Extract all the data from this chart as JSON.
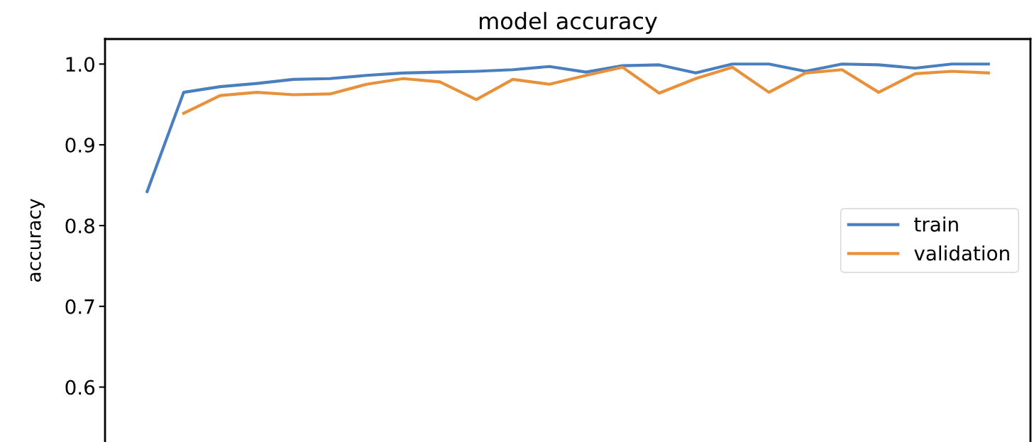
{
  "chart_data": {
    "type": "line",
    "title": "model accuracy",
    "ylabel": "accuracy",
    "categories": [
      null,
      null,
      null,
      null,
      null,
      null,
      null,
      null,
      null,
      null,
      null,
      null,
      null,
      null,
      null,
      null,
      null,
      null,
      null,
      null,
      null,
      null,
      null,
      null
    ],
    "series": [
      {
        "name": "train",
        "color": "#4a7fbf",
        "values": [
          0.842,
          0.965,
          0.972,
          0.976,
          0.981,
          0.982,
          0.986,
          0.989,
          0.99,
          0.991,
          0.993,
          0.997,
          0.99,
          0.998,
          0.999,
          0.989,
          1.0,
          1.0,
          0.991,
          1.0,
          0.999,
          0.995,
          1.0,
          1.0
        ]
      },
      {
        "name": "validation",
        "color": "#e8913a",
        "values": [
          null,
          0.939,
          0.961,
          0.965,
          0.962,
          0.963,
          0.975,
          0.982,
          0.978,
          0.956,
          0.981,
          0.975,
          0.986,
          0.996,
          0.964,
          0.982,
          0.996,
          0.965,
          0.989,
          0.993,
          0.965,
          0.988,
          0.991,
          0.989
        ]
      }
    ],
    "ylim": [
      0.532,
      1.031
    ],
    "yticks": [
      0.6,
      0.7,
      0.8,
      0.9,
      {
        "value": 1,
        "label": "1.0"
      }
    ],
    "tick_labels": "y",
    "legend": "right",
    "grid": false
  }
}
